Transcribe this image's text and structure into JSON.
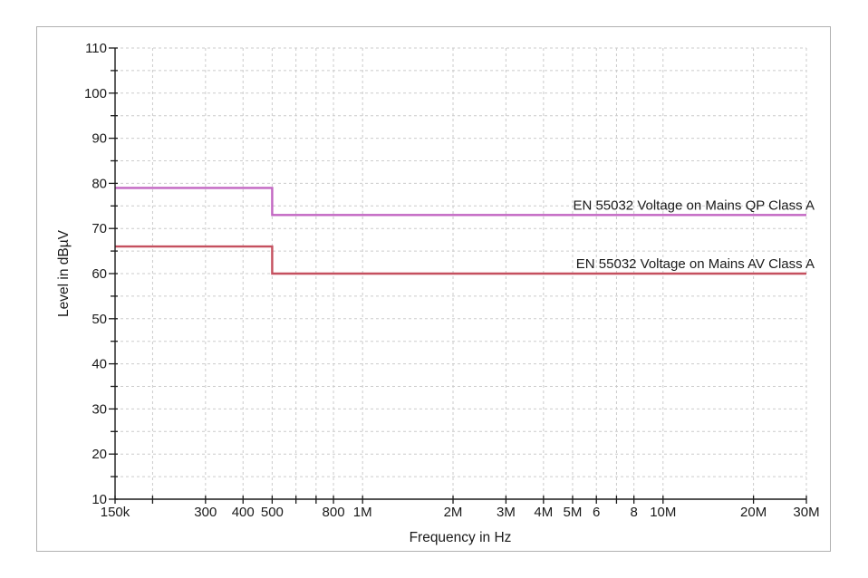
{
  "page": {
    "background": "#ffffff",
    "panel_border_color": "#b0b0b0"
  },
  "chart_data": {
    "type": "line",
    "title": "",
    "xlabel": "Frequency in Hz",
    "ylabel": "Level in dBµV",
    "x_scale": "log",
    "x_range_hz": [
      150000,
      30000000
    ],
    "ylim": [
      10,
      110
    ],
    "y_major_step": 10,
    "y_minor_step": 5,
    "grid": "dashed",
    "grid_color": "#cbcbcb",
    "axis_color": "#1a1a1a",
    "legend_position": "inline-right",
    "x_ticks": [
      {
        "hz": 150000,
        "label": "150k"
      },
      {
        "hz": 200000,
        "label": ""
      },
      {
        "hz": 300000,
        "label": "300"
      },
      {
        "hz": 400000,
        "label": "400"
      },
      {
        "hz": 500000,
        "label": "500"
      },
      {
        "hz": 600000,
        "label": ""
      },
      {
        "hz": 700000,
        "label": ""
      },
      {
        "hz": 800000,
        "label": "800"
      },
      {
        "hz": 1000000,
        "label": "1M"
      },
      {
        "hz": 2000000,
        "label": "2M"
      },
      {
        "hz": 3000000,
        "label": "3M"
      },
      {
        "hz": 4000000,
        "label": "4M"
      },
      {
        "hz": 5000000,
        "label": "5M"
      },
      {
        "hz": 6000000,
        "label": "6"
      },
      {
        "hz": 7000000,
        "label": ""
      },
      {
        "hz": 8000000,
        "label": "8"
      },
      {
        "hz": 10000000,
        "label": "10M"
      },
      {
        "hz": 20000000,
        "label": "20M"
      },
      {
        "hz": 30000000,
        "label": "30M"
      }
    ],
    "y_tick_labels": [
      "10",
      "20",
      "30",
      "40",
      "50",
      "60",
      "70",
      "80",
      "90",
      "100",
      "110"
    ],
    "series": [
      {
        "name": "EN 55032 Voltage on Mains QP Class A",
        "color": "#c266c2",
        "label_color": "#cf52cf",
        "points_hz_dbuv": [
          [
            150000,
            79
          ],
          [
            500000,
            79
          ],
          [
            500000,
            73
          ],
          [
            30000000,
            73
          ]
        ],
        "label_anchor_hz": 30000000,
        "label_anchor_dbuv": 73
      },
      {
        "name": "EN 55032 Voltage on Mains AV Class A",
        "color": "#c5505f",
        "label_color": "#cd4646",
        "points_hz_dbuv": [
          [
            150000,
            66
          ],
          [
            500000,
            66
          ],
          [
            500000,
            60
          ],
          [
            30000000,
            60
          ]
        ],
        "label_anchor_hz": 30000000,
        "label_anchor_dbuv": 60
      }
    ]
  }
}
